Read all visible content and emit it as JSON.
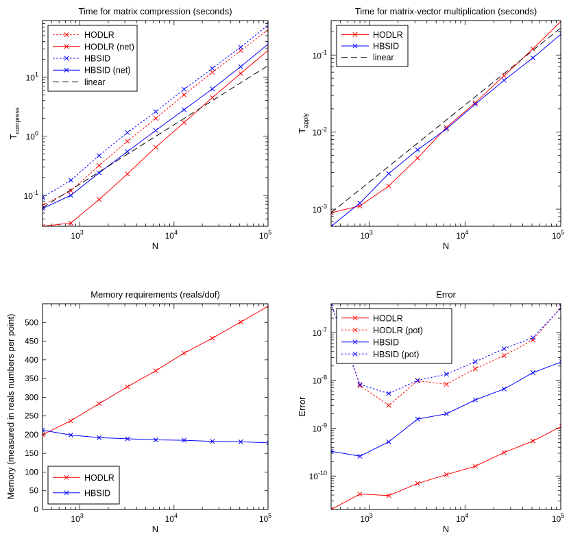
{
  "chart_data": [
    {
      "type": "line",
      "title": "Time for matrix compression (seconds)",
      "xlabel": "N",
      "ylabel": "T",
      "ylabel_sub": "compress",
      "xscale": "log",
      "yscale": "log",
      "xlim": [
        400,
        100000
      ],
      "ylim": [
        0.03,
        90
      ],
      "xticks": [
        {
          "value": 1000,
          "base": "10",
          "exp": "3"
        },
        {
          "value": 10000,
          "base": "10",
          "exp": "4"
        },
        {
          "value": 100000,
          "base": "10",
          "exp": "5"
        }
      ],
      "yticks": [
        {
          "value": 0.1,
          "base": "10",
          "exp": "-1"
        },
        {
          "value": 1,
          "base": "10",
          "exp": "0"
        },
        {
          "value": 10,
          "base": "10",
          "exp": "1"
        }
      ],
      "legend_position": "top-left",
      "grid": false,
      "series": [
        {
          "name": "HODLR",
          "color": "#ff0000",
          "dash": "dotted",
          "marker": "x",
          "x": [
            400,
            800,
            1600,
            3200,
            6400,
            12800,
            25600,
            51200,
            102400
          ],
          "y": [
            0.068,
            0.12,
            0.32,
            0.82,
            2.0,
            5.0,
            12.0,
            28.0,
            65.0
          ]
        },
        {
          "name": "HODLR (net)",
          "color": "#ff0000",
          "dash": "solid",
          "marker": "x",
          "x": [
            400,
            800,
            1600,
            3200,
            6400,
            12800,
            25600,
            51200,
            102400
          ],
          "y": [
            0.03,
            0.034,
            0.085,
            0.23,
            0.65,
            1.7,
            4.5,
            11.5,
            29.0
          ]
        },
        {
          "name": "HBSID",
          "color": "#0000ff",
          "dash": "dotted",
          "marker": "x",
          "x": [
            400,
            800,
            1600,
            3200,
            6400,
            12800,
            25600,
            51200,
            102400
          ],
          "y": [
            0.092,
            0.18,
            0.47,
            1.15,
            2.6,
            6.2,
            14.0,
            32.0,
            78.0
          ]
        },
        {
          "name": "HBSID (net)",
          "color": "#0000ff",
          "dash": "solid",
          "marker": "x",
          "x": [
            400,
            800,
            1600,
            3200,
            6400,
            12800,
            25600,
            51200,
            102400
          ],
          "y": [
            0.06,
            0.1,
            0.24,
            0.55,
            1.25,
            2.8,
            6.3,
            15.0,
            37.0
          ]
        },
        {
          "name": "linear",
          "color": "#000000",
          "dash": "dashed",
          "marker": "none",
          "x": [
            400,
            102400
          ],
          "y": [
            0.062,
            16.0
          ]
        }
      ]
    },
    {
      "type": "line",
      "title": "Time for matrix-vector multiplication (seconds)",
      "xlabel": "N",
      "ylabel": "T",
      "ylabel_sub": "apply",
      "xscale": "log",
      "yscale": "log",
      "xlim": [
        400,
        100000
      ],
      "ylim": [
        0.0006,
        0.28
      ],
      "xticks": [
        {
          "value": 1000,
          "base": "10",
          "exp": "3"
        },
        {
          "value": 10000,
          "base": "10",
          "exp": "4"
        },
        {
          "value": 100000,
          "base": "10",
          "exp": "5"
        }
      ],
      "yticks": [
        {
          "value": 0.001,
          "base": "10",
          "exp": "-3"
        },
        {
          "value": 0.01,
          "base": "10",
          "exp": "-2"
        },
        {
          "value": 0.1,
          "base": "10",
          "exp": "-1"
        }
      ],
      "legend_position": "top-left",
      "grid": false,
      "series": [
        {
          "name": "HODLR",
          "color": "#ff0000",
          "dash": "solid",
          "marker": "x",
          "x": [
            400,
            800,
            1600,
            3200,
            6400,
            12800,
            25600,
            51200,
            102400
          ],
          "y": [
            0.0009,
            0.0011,
            0.002,
            0.0046,
            0.0115,
            0.024,
            0.054,
            0.12,
            0.28
          ]
        },
        {
          "name": "HBSID",
          "color": "#0000ff",
          "dash": "solid",
          "marker": "x",
          "x": [
            400,
            800,
            1600,
            3200,
            6400,
            12800,
            25600,
            51200,
            102400
          ],
          "y": [
            0.0006,
            0.0012,
            0.0029,
            0.0059,
            0.011,
            0.023,
            0.047,
            0.092,
            0.19
          ]
        },
        {
          "name": "linear",
          "color": "#000000",
          "dash": "dashed",
          "marker": "none",
          "x": [
            400,
            102400
          ],
          "y": [
            0.0009,
            0.23
          ]
        }
      ]
    },
    {
      "type": "line",
      "title": "Memory requirements (reals/dof)",
      "xlabel": "N",
      "ylabel": "Memory (measured in reals numbers per point)",
      "ylabel_sub": "",
      "xscale": "log",
      "yscale": "linear",
      "xlim": [
        400,
        100000
      ],
      "ylim": [
        0,
        550
      ],
      "xticks": [
        {
          "value": 1000,
          "base": "10",
          "exp": "3"
        },
        {
          "value": 10000,
          "base": "10",
          "exp": "4"
        },
        {
          "value": 100000,
          "base": "10",
          "exp": "5"
        }
      ],
      "yticks": [
        {
          "value": 0,
          "label": "0"
        },
        {
          "value": 50,
          "label": "50"
        },
        {
          "value": 100,
          "label": "100"
        },
        {
          "value": 150,
          "label": "150"
        },
        {
          "value": 200,
          "label": "200"
        },
        {
          "value": 250,
          "label": "250"
        },
        {
          "value": 300,
          "label": "300"
        },
        {
          "value": 350,
          "label": "350"
        },
        {
          "value": 400,
          "label": "400"
        },
        {
          "value": 450,
          "label": "450"
        },
        {
          "value": 500,
          "label": "500"
        }
      ],
      "legend_position": "bottom-left",
      "grid": false,
      "series": [
        {
          "name": "HODLR",
          "color": "#ff0000",
          "dash": "solid",
          "marker": "x",
          "x": [
            400,
            800,
            1600,
            3200,
            6400,
            12800,
            25600,
            51200,
            102400
          ],
          "y": [
            200,
            237,
            283,
            328,
            371,
            418,
            458,
            501,
            545
          ]
        },
        {
          "name": "HBSID",
          "color": "#0000ff",
          "dash": "solid",
          "marker": "x",
          "x": [
            400,
            800,
            1600,
            3200,
            6400,
            12800,
            25600,
            51200,
            102400
          ],
          "y": [
            212,
            199,
            192,
            189,
            186,
            185,
            182,
            181,
            178
          ]
        }
      ]
    },
    {
      "type": "line",
      "title": "Error",
      "xlabel": "N",
      "ylabel": "Error",
      "ylabel_sub": "",
      "xscale": "log",
      "yscale": "log",
      "xlim": [
        400,
        100000
      ],
      "ylim": [
        2e-11,
        4e-07
      ],
      "xticks": [
        {
          "value": 1000,
          "base": "10",
          "exp": "3"
        },
        {
          "value": 10000,
          "base": "10",
          "exp": "4"
        },
        {
          "value": 100000,
          "base": "10",
          "exp": "5"
        }
      ],
      "yticks": [
        {
          "value": 1e-10,
          "base": "10",
          "exp": "-10"
        },
        {
          "value": 1e-09,
          "base": "10",
          "exp": "-9"
        },
        {
          "value": 1e-08,
          "base": "10",
          "exp": "-8"
        },
        {
          "value": 1e-07,
          "base": "10",
          "exp": "-7"
        }
      ],
      "legend_position": "top-left",
      "grid": false,
      "series": [
        {
          "name": "HODLR",
          "color": "#ff0000",
          "dash": "solid",
          "marker": "x",
          "x": [
            400,
            800,
            1600,
            3200,
            6400,
            12800,
            25600,
            51200,
            102400
          ],
          "y": [
            2e-11,
            4.2e-11,
            3.9e-11,
            7e-11,
            1.07e-10,
            1.6e-10,
            3.1e-10,
            5.4e-10,
            1.1e-09
          ]
        },
        {
          "name": "HODLR (pot)",
          "color": "#ff0000",
          "dash": "dotted",
          "marker": "x",
          "x": [
            400,
            800,
            1600,
            3200,
            6400,
            12800,
            25600,
            51200,
            102400
          ],
          "y": [
            4e-07,
            7.8e-09,
            3e-09,
            9.8e-09,
            8.3e-09,
            1.75e-08,
            3.3e-08,
            7e-08,
            3.5e-07
          ]
        },
        {
          "name": "HBSID",
          "color": "#0000ff",
          "dash": "solid",
          "marker": "x",
          "x": [
            400,
            800,
            1600,
            3200,
            6400,
            12800,
            25600,
            51200,
            102400
          ],
          "y": [
            3.3e-10,
            2.6e-10,
            5.2e-10,
            1.55e-09,
            2e-09,
            3.9e-09,
            6.6e-09,
            1.45e-08,
            2.45e-08
          ]
        },
        {
          "name": "HBSID (pot)",
          "color": "#0000ff",
          "dash": "dotted",
          "marker": "x",
          "x": [
            400,
            800,
            1600,
            3200,
            6400,
            12800,
            25600,
            51200,
            102400
          ],
          "y": [
            4e-07,
            8.2e-09,
            5.3e-09,
            1e-08,
            1.35e-08,
            2.45e-08,
            4.6e-08,
            7.8e-08,
            3.4e-07
          ]
        }
      ]
    }
  ]
}
